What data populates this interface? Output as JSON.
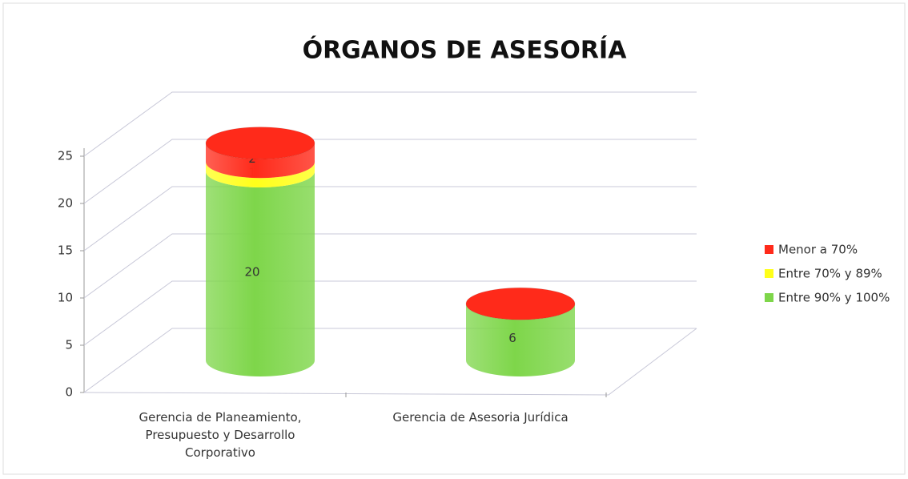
{
  "chart_data": {
    "type": "bar",
    "title": "ÓRGANOS DE ASESORÍA",
    "categories": [
      "Gerencia de Planeamiento, Presupuesto y Desarrollo Corporativo",
      "Gerencia de Asesoria Jurídica"
    ],
    "series": [
      {
        "name": "Menor a 70%",
        "color": "#ff2a1a",
        "values": [
          2,
          0
        ]
      },
      {
        "name": "Entre 70% y 89%",
        "color": "#ffff1a",
        "values": [
          1,
          0
        ]
      },
      {
        "name": "Entre 90% y 100%",
        "color": "#7ed64a",
        "values": [
          20,
          6
        ]
      }
    ],
    "stacked": true,
    "ylim": [
      0,
      25
    ],
    "yticks": [
      0,
      5,
      10,
      15,
      20,
      25
    ],
    "grid": true,
    "legend": "right"
  }
}
